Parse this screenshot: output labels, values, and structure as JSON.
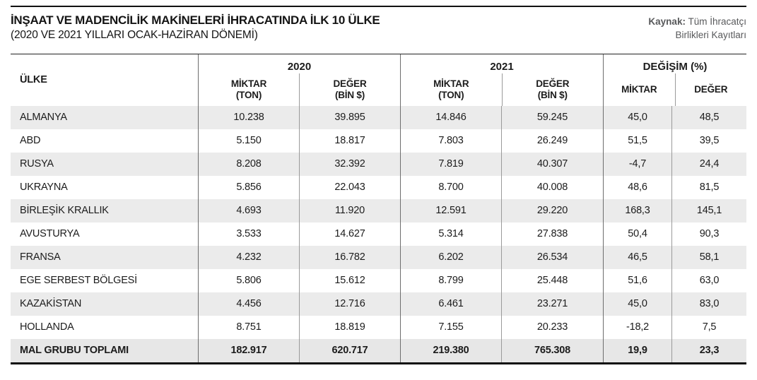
{
  "source": {
    "label": "Kaynak:",
    "line1": "Tüm İhracatçı",
    "line2": "Birlikleri Kayıtları"
  },
  "chart_data": {
    "type": "table",
    "title": "İNŞAAT VE MADENCİLİK MAKİNELERİ İHRACATINDA İLK 10 ÜLKE",
    "subtitle": "(2020 VE 2021 YILLARI OCAK-HAZİRAN DÖNEMİ)",
    "source_full": "Kaynak: Tüm İhracatçı Birlikleri Kayıtları",
    "columns": {
      "country": "ÜLKE",
      "groups": [
        {
          "label": "2020",
          "sub": [
            [
              "MİKTAR",
              "(TON)"
            ],
            [
              "DEĞER",
              "(BİN $)"
            ]
          ]
        },
        {
          "label": "2021",
          "sub": [
            [
              "MİKTAR",
              "(TON)"
            ],
            [
              "DEĞER",
              "(BİN $)"
            ]
          ]
        },
        {
          "label": "DEĞİŞİM (%)",
          "sub": [
            [
              "MİKTAR",
              ""
            ],
            [
              "DEĞER",
              ""
            ]
          ]
        }
      ]
    },
    "rows": [
      {
        "country": "ALMANYA",
        "values": [
          "10.238",
          "39.895",
          "14.846",
          "59.245",
          "45,0",
          "48,5"
        ]
      },
      {
        "country": "ABD",
        "values": [
          "5.150",
          "18.817",
          "7.803",
          "26.249",
          "51,5",
          "39,5"
        ]
      },
      {
        "country": "RUSYA",
        "values": [
          "8.208",
          "32.392",
          "7.819",
          "40.307",
          "-4,7",
          "24,4"
        ]
      },
      {
        "country": "UKRAYNA",
        "values": [
          "5.856",
          "22.043",
          "8.700",
          "40.008",
          "48,6",
          "81,5"
        ]
      },
      {
        "country": "BİRLEŞİK KRALLIK",
        "values": [
          "4.693",
          "11.920",
          "12.591",
          "29.220",
          "168,3",
          "145,1"
        ]
      },
      {
        "country": "AVUSTURYA",
        "values": [
          "3.533",
          "14.627",
          "5.314",
          "27.838",
          "50,4",
          "90,3"
        ]
      },
      {
        "country": "FRANSA",
        "values": [
          "4.232",
          "16.782",
          "6.202",
          "26.534",
          "46,5",
          "58,1"
        ]
      },
      {
        "country": "EGE SERBEST BÖLGESİ",
        "values": [
          "5.806",
          "15.612",
          "8.799",
          "25.448",
          "51,6",
          "63,0"
        ]
      },
      {
        "country": "KAZAKİSTAN",
        "values": [
          "4.456",
          "12.716",
          "6.461",
          "23.271",
          "45,0",
          "83,0"
        ]
      },
      {
        "country": "HOLLANDA",
        "values": [
          "8.751",
          "18.819",
          "7.155",
          "20.233",
          "-18,2",
          "7,5"
        ]
      }
    ],
    "total_row": {
      "country": "MAL GRUBU TOPLAMI",
      "values": [
        "182.917",
        "620.717",
        "219.380",
        "765.308",
        "19,9",
        "23,3"
      ]
    },
    "colors": {
      "stripe_bg": "#ebebeb",
      "total_bg": "#e7e7e7",
      "text": "#1c1c1c",
      "source_text": "#58595b",
      "rule": "#111111",
      "divider_main": "#6d6d6d",
      "divider_sub": "#9a9a9a"
    }
  }
}
